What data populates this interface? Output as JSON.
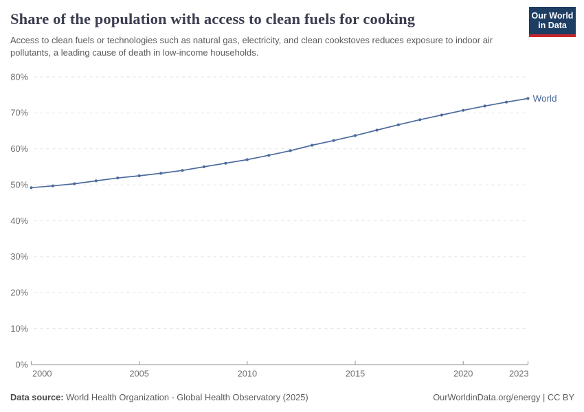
{
  "header": {
    "title": "Share of the population with access to clean fuels for cooking",
    "subtitle": "Access to clean fuels or technologies such as natural gas, electricity, and clean cookstoves reduces exposure to indoor air pollutants, a leading cause of death in low-income households.",
    "logo": {
      "line1": "Our World",
      "line2": "in Data",
      "bg_color": "#1d3d63",
      "accent_color": "#c7252d"
    }
  },
  "chart_data": {
    "type": "line",
    "title": "Share of the population with access to clean fuels for cooking",
    "x": [
      2000,
      2001,
      2002,
      2003,
      2004,
      2005,
      2006,
      2007,
      2008,
      2009,
      2010,
      2011,
      2012,
      2013,
      2014,
      2015,
      2016,
      2017,
      2018,
      2019,
      2020,
      2021,
      2022,
      2023
    ],
    "series": [
      {
        "name": "World",
        "color": "#4c6a9c",
        "values": [
          49.2,
          49.7,
          50.3,
          51.1,
          51.9,
          52.5,
          53.2,
          54.0,
          55.0,
          56.0,
          57.0,
          58.2,
          59.5,
          61.0,
          62.3,
          63.7,
          65.2,
          66.7,
          68.1,
          69.4,
          70.7,
          71.9,
          73.0,
          74.0
        ]
      }
    ],
    "xlabel": "",
    "ylabel": "",
    "xlim": [
      2000,
      2023
    ],
    "ylim": [
      0,
      80
    ],
    "xticks": {
      "values": [
        2000,
        2005,
        2010,
        2015,
        2020,
        2023
      ],
      "labels": [
        "2000",
        "2005",
        "2010",
        "2015",
        "2020",
        "2023"
      ]
    },
    "yticks": {
      "values": [
        0,
        10,
        20,
        30,
        40,
        50,
        60,
        70,
        80
      ],
      "labels": [
        "0%",
        "10%",
        "20%",
        "30%",
        "40%",
        "50%",
        "60%",
        "70%",
        "80%"
      ]
    },
    "grid": "horizontal-dashed",
    "legend_position": "end-of-line",
    "colors": {
      "gridline": "#e2e2e2",
      "axis": "#8f8f8f",
      "tick_text": "#6e6e6e"
    }
  },
  "footer": {
    "datasource_label": "Data source:",
    "datasource_value": " World Health Organization - Global Health Observatory (2025)",
    "right_text": "OurWorldinData.org/energy | CC BY"
  }
}
